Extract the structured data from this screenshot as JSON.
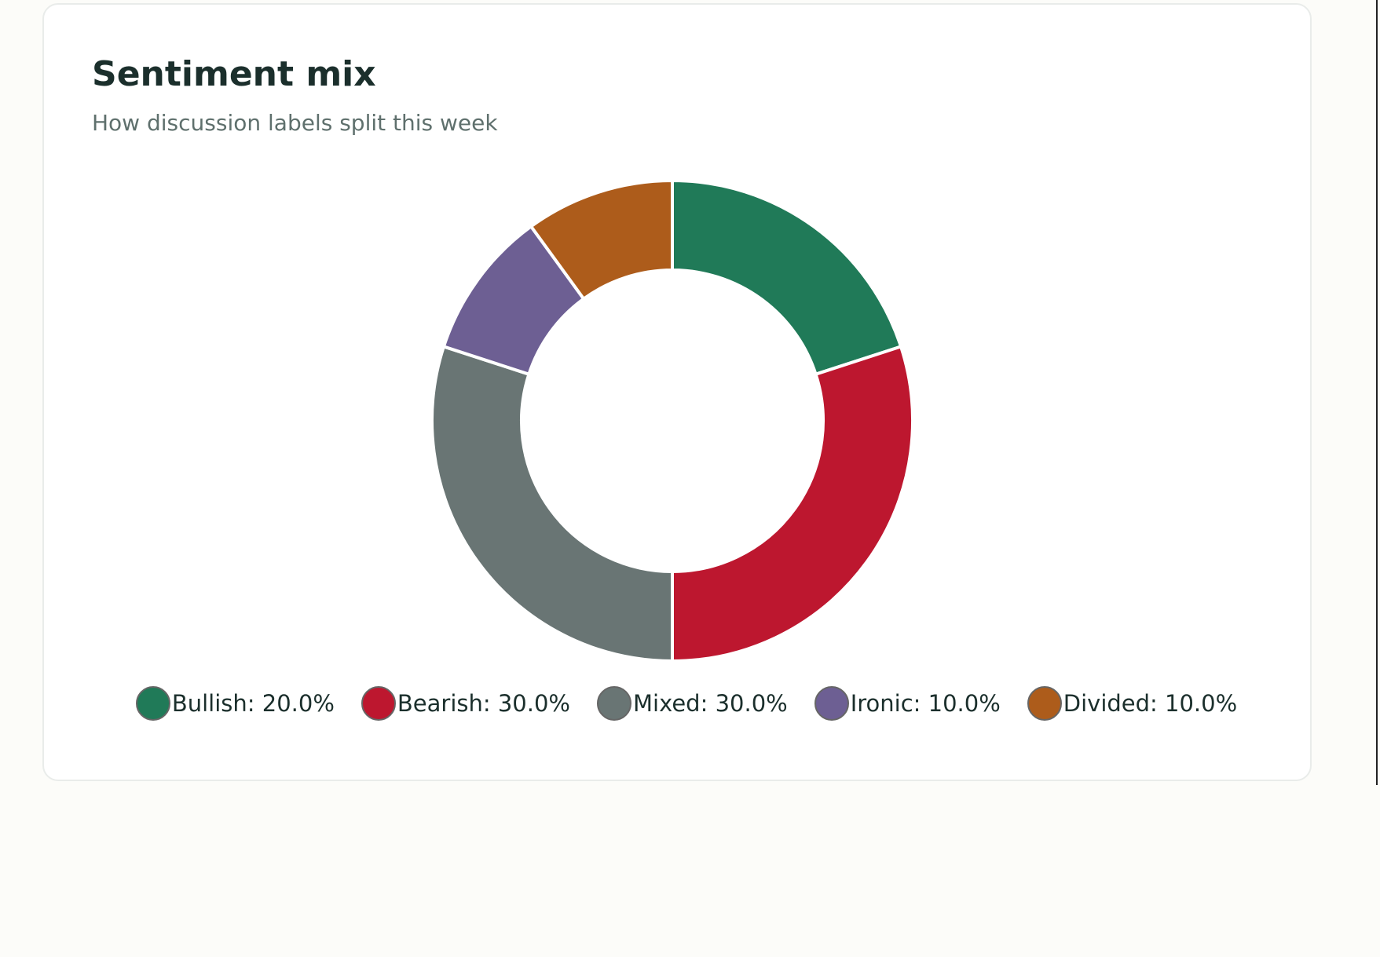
{
  "card": {
    "title": "Sentiment mix",
    "subtitle": "How discussion labels split this week"
  },
  "chart_data": {
    "type": "pie",
    "title": "Sentiment mix",
    "subtitle": "How discussion labels split this week",
    "legend_position": "bottom",
    "categories": [
      "Bullish",
      "Bearish",
      "Mixed",
      "Ironic",
      "Divided"
    ],
    "values": [
      20.0,
      30.0,
      30.0,
      10.0,
      10.0
    ],
    "colors": [
      "#207a58",
      "#bd172f",
      "#697574",
      "#6d5f93",
      "#ad5c1b"
    ],
    "labels": [
      "Bullish: 20.0%",
      "Bearish: 30.0%",
      "Mixed: 30.0%",
      "Ironic: 10.0%",
      "Divided: 10.0%"
    ]
  }
}
